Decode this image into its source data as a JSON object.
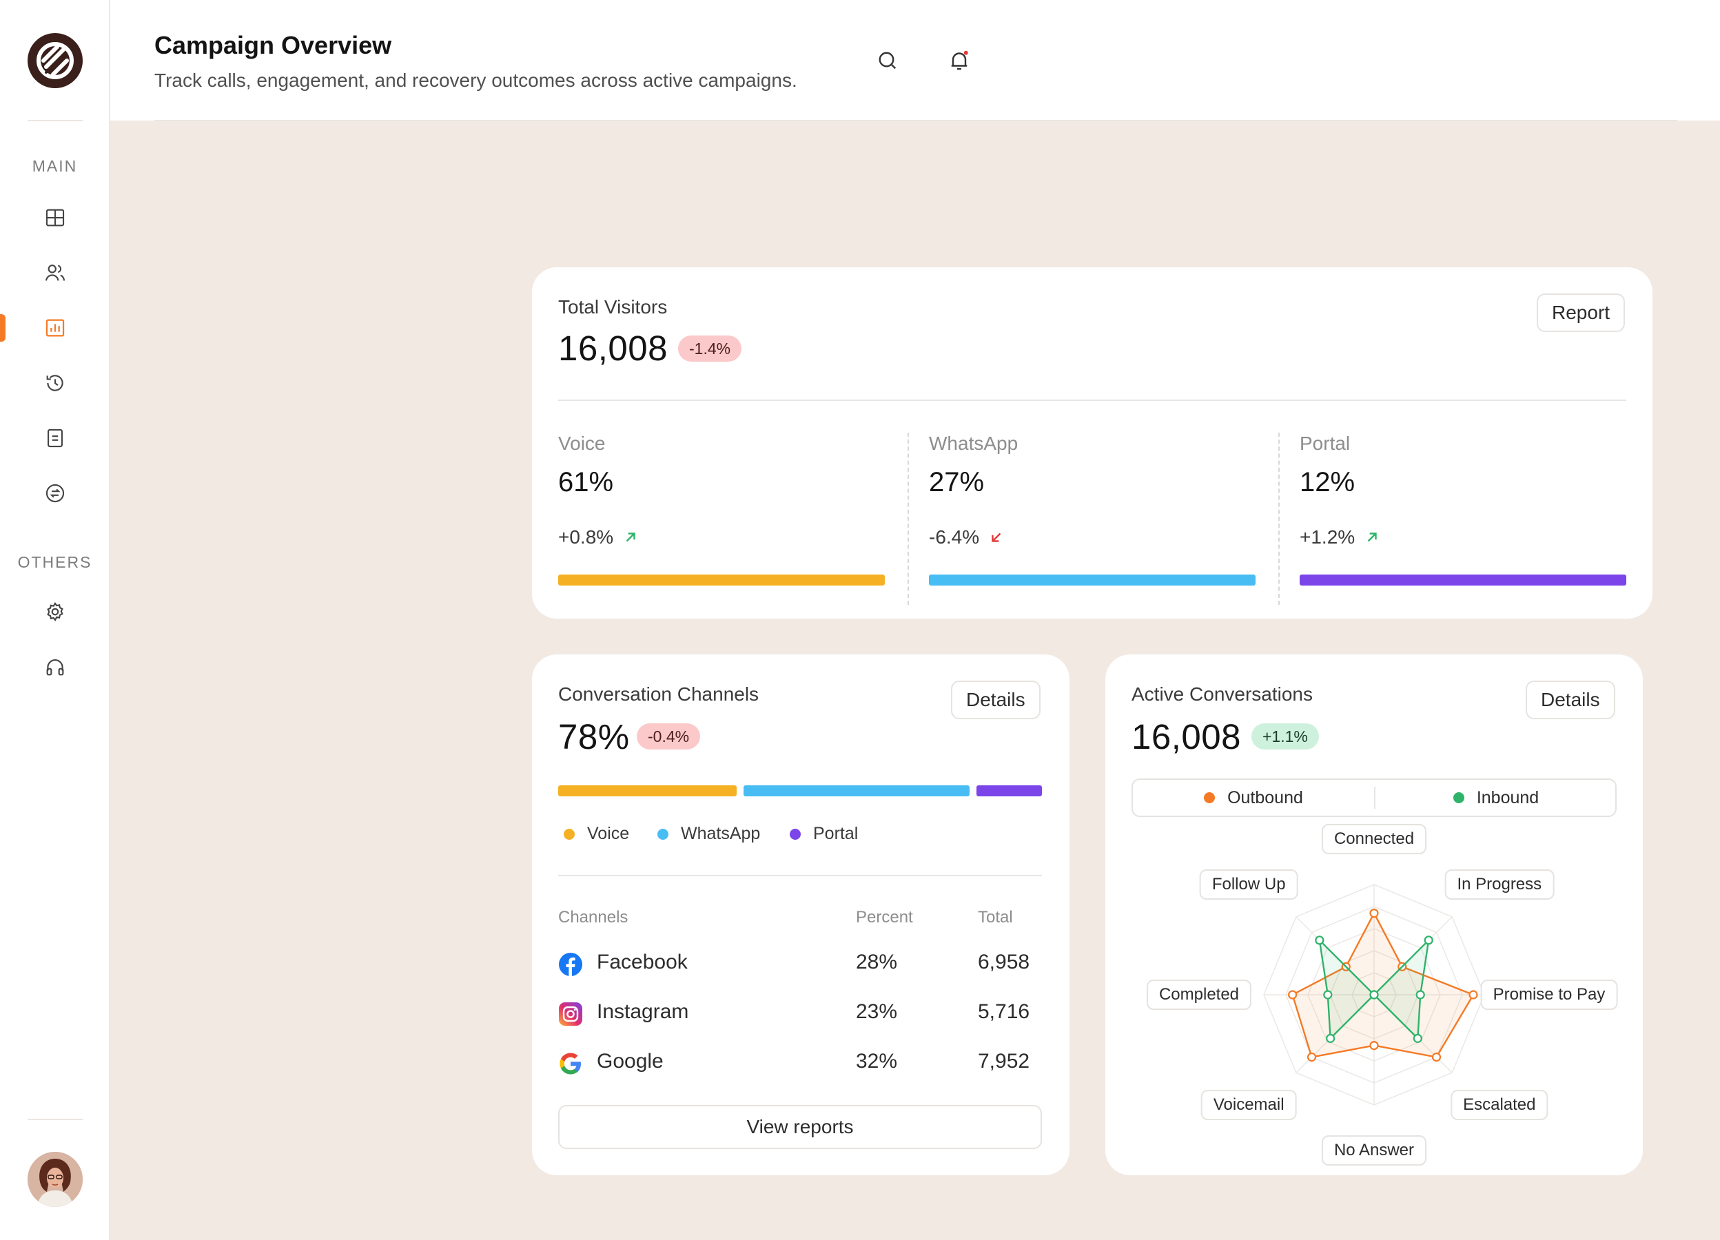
{
  "header": {
    "title": "Campaign Overview",
    "subtitle": "Track calls, engagement, and recovery outcomes across active campaigns."
  },
  "sidebar": {
    "main_label": "MAIN",
    "others_label": "OTHERS",
    "main_items": [
      {
        "icon": "grid-icon"
      },
      {
        "icon": "users-icon"
      },
      {
        "icon": "bar-chart-icon",
        "active": true
      },
      {
        "icon": "history-icon"
      },
      {
        "icon": "document-icon"
      },
      {
        "icon": "exchange-icon"
      }
    ],
    "other_items": [
      {
        "icon": "gear-icon"
      },
      {
        "icon": "headphones-icon"
      }
    ]
  },
  "visitors": {
    "title": "Total Visitors",
    "total": "16,008",
    "change": "-1.4%",
    "button": "Report",
    "channels": [
      {
        "label": "Voice",
        "value": "61%",
        "change": "+0.8%",
        "trend": "up",
        "color": "#f5b123"
      },
      {
        "label": "WhatsApp",
        "value": "27%",
        "change": "-6.4%",
        "trend": "down",
        "color": "#48bdf4"
      },
      {
        "label": "Portal",
        "value": "12%",
        "change": "+1.2%",
        "trend": "up",
        "color": "#7b45ea"
      }
    ]
  },
  "conversation_channels": {
    "title": "Conversation Channels",
    "value": "78%",
    "change": "-0.4%",
    "button": "Details",
    "segments": [
      {
        "name": "Voice",
        "share": 0.38,
        "color": "#f5b123"
      },
      {
        "name": "WhatsApp",
        "share": 0.48,
        "color": "#48bdf4"
      },
      {
        "name": "Portal",
        "share": 0.14,
        "color": "#7b45ea"
      }
    ],
    "legend": [
      "Voice",
      "WhatsApp",
      "Portal"
    ],
    "table": {
      "headers": [
        "Channels",
        "Percent",
        "Total"
      ],
      "rows": [
        {
          "icon": "facebook-icon",
          "channel": "Facebook",
          "percent": "28%",
          "total": "6,958"
        },
        {
          "icon": "instagram-icon",
          "channel": "Instagram",
          "percent": "23%",
          "total": "5,716"
        },
        {
          "icon": "google-icon",
          "channel": "Google",
          "percent": "32%",
          "total": "7,952"
        }
      ]
    },
    "footer_button": "View reports"
  },
  "active_conversations": {
    "title": "Active Conversations",
    "total": "16,008",
    "change": "+1.1%",
    "button": "Details",
    "toggle": [
      {
        "label": "Outbound",
        "color": "#f47a25"
      },
      {
        "label": "Inbound",
        "color": "#2fb36b"
      }
    ],
    "chart_data": {
      "type": "radar",
      "axes": [
        "Connected",
        "In Progress",
        "Promise to Pay",
        "Escalated",
        "No Answer",
        "Voicemail",
        "Completed",
        "Follow Up"
      ],
      "rmax": 5,
      "series": [
        {
          "name": "Outbound",
          "color": "#f47a25",
          "values": [
            3.7,
            1.8,
            4.5,
            4.0,
            2.3,
            4.0,
            3.7,
            1.8
          ]
        },
        {
          "name": "Inbound",
          "color": "#2fb36b",
          "values": [
            0.0,
            3.5,
            2.1,
            2.8,
            0.0,
            2.8,
            2.1,
            3.5
          ]
        }
      ]
    }
  }
}
